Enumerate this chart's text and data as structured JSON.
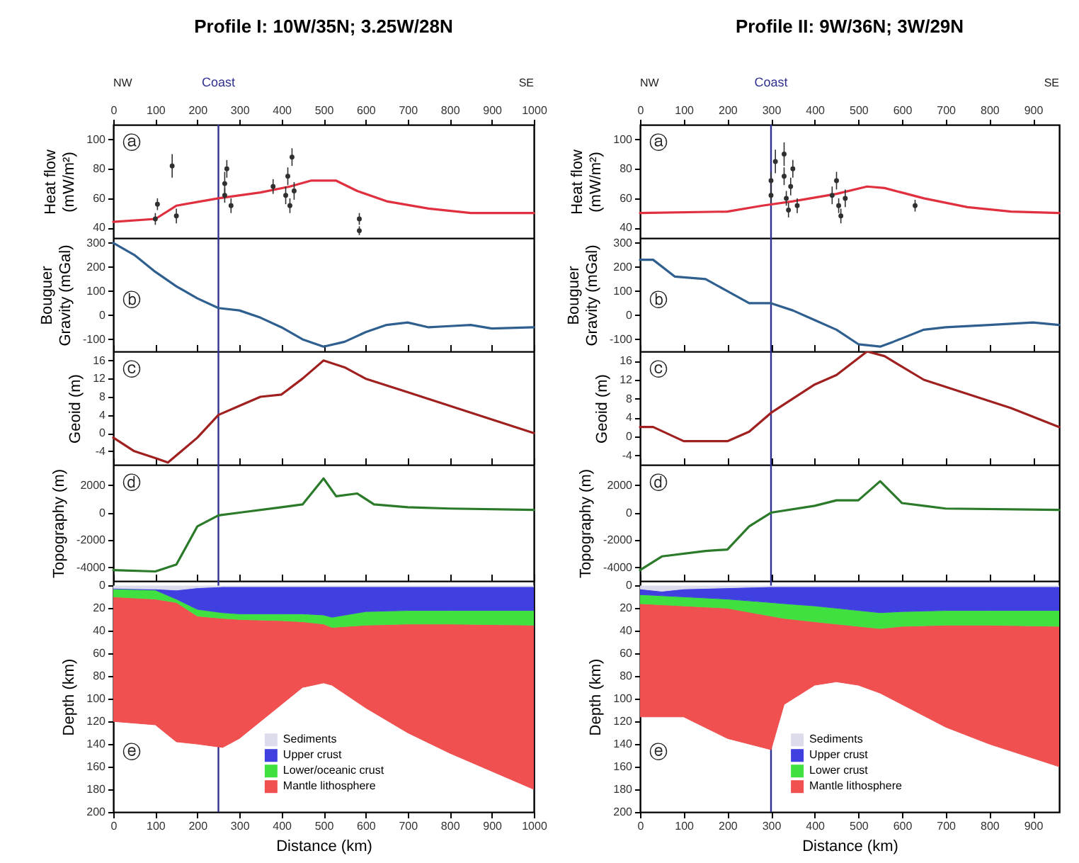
{
  "chart_data": [
    {
      "type": "line",
      "title": "Profile I: 10W/35N; 3.25W/28N",
      "ylabel": "Heat flow\n(mW/m²)",
      "xlim": [
        0,
        1000
      ],
      "xticks": [
        0,
        100,
        200,
        300,
        400,
        500,
        600,
        700,
        800,
        900,
        1000
      ],
      "ylim": [
        33,
        110
      ],
      "yticks": [
        40,
        60,
        80,
        100
      ],
      "annotations": [
        "ⓐ",
        "NW",
        "SE"
      ],
      "ref_lines": [
        {
          "axis": "x",
          "value": 250,
          "label": "Coast",
          "color": "#303090"
        }
      ],
      "series": [
        {
          "type": "scatter",
          "marker": "circle",
          "color": "#303030",
          "x": [
            100,
            105,
            140,
            150,
            265,
            265,
            270,
            280,
            380,
            410,
            415,
            420,
            425,
            430,
            585,
            585
          ],
          "values": [
            46,
            56,
            82,
            48,
            70,
            62,
            80,
            55,
            68,
            62,
            75,
            55,
            88,
            65,
            46,
            38
          ],
          "errors": [
            4,
            4,
            8,
            5,
            8,
            5,
            6,
            5,
            5,
            6,
            6,
            5,
            6,
            6,
            4,
            3
          ]
        },
        {
          "type": "line",
          "color": "#e03040",
          "x": [
            0,
            100,
            150,
            250,
            350,
            420,
            470,
            530,
            580,
            650,
            750,
            850,
            1000
          ],
          "values": [
            44,
            46,
            55,
            60,
            64,
            68,
            72,
            72,
            65,
            58,
            53,
            50,
            50
          ]
        }
      ]
    },
    {
      "type": "line",
      "ylabel": "Bouguer\nGravity (mGal)",
      "xlim": [
        0,
        1000
      ],
      "xticks": [
        0,
        100,
        200,
        300,
        400,
        500,
        600,
        700,
        800,
        900,
        1000
      ],
      "ylim": [
        -150,
        320
      ],
      "yticks": [
        -100,
        0,
        100,
        200,
        300
      ],
      "tick_labels": "y",
      "annotations": [
        "ⓑ"
      ],
      "ref_lines": [
        {
          "axis": "x",
          "value": 250,
          "color": "#303090"
        }
      ],
      "series": [
        {
          "color": "#2f5f8f",
          "x": [
            0,
            50,
            100,
            150,
            200,
            250,
            300,
            350,
            400,
            450,
            500,
            550,
            600,
            650,
            700,
            750,
            800,
            850,
            900,
            1000
          ],
          "values": [
            300,
            250,
            180,
            120,
            70,
            30,
            20,
            -10,
            -50,
            -100,
            -130,
            -110,
            -70,
            -40,
            -30,
            -50,
            -45,
            -40,
            -55,
            -50
          ]
        }
      ]
    },
    {
      "type": "line",
      "ylabel": "Geoid (m)",
      "xlim": [
        0,
        1000
      ],
      "xticks": [
        0,
        100,
        200,
        300,
        400,
        500,
        600,
        700,
        800,
        900,
        1000
      ],
      "ylim": [
        -7,
        18
      ],
      "yticks": [
        -4,
        0,
        4,
        8,
        12,
        16
      ],
      "tick_labels": "y",
      "annotations": [
        "ⓒ"
      ],
      "ref_lines": [
        {
          "axis": "x",
          "value": 250,
          "color": "#303090"
        }
      ],
      "series": [
        {
          "color": "#a02020",
          "x": [
            0,
            50,
            100,
            130,
            200,
            250,
            300,
            350,
            400,
            450,
            500,
            550,
            600,
            700,
            800,
            900,
            1000
          ],
          "values": [
            -1,
            -4,
            -5.5,
            -6.5,
            -1,
            4,
            6,
            8,
            8.5,
            12,
            16,
            14.5,
            12,
            9,
            6,
            3,
            0
          ]
        }
      ]
    },
    {
      "type": "line",
      "ylabel": "Topography (m)",
      "xlim": [
        0,
        1000
      ],
      "xticks": [
        0,
        100,
        200,
        300,
        400,
        500,
        600,
        700,
        800,
        900,
        1000
      ],
      "ylim": [
        -5000,
        3500
      ],
      "yticks": [
        -4000,
        -2000,
        0,
        2000
      ],
      "tick_labels": "y",
      "annotations": [
        "ⓓ"
      ],
      "ref_lines": [
        {
          "axis": "x",
          "value": 250,
          "color": "#303090"
        }
      ],
      "series": [
        {
          "color": "#2a7a2a",
          "x": [
            0,
            100,
            150,
            200,
            250,
            300,
            400,
            450,
            500,
            530,
            580,
            620,
            700,
            800,
            1000
          ],
          "values": [
            -4200,
            -4300,
            -3800,
            -1000,
            -200,
            0,
            400,
            600,
            2500,
            1200,
            1400,
            600,
            400,
            300,
            200
          ]
        }
      ]
    },
    {
      "type": "area",
      "stacked": true,
      "xlabel": "Distance (km)",
      "ylabel": "Depth (km)",
      "xlim": [
        0,
        1000
      ],
      "xticks": [
        0,
        100,
        200,
        300,
        400,
        500,
        600,
        700,
        800,
        900,
        1000
      ],
      "ylim": [
        200,
        -4
      ],
      "yticks": [
        0,
        20,
        40,
        60,
        80,
        100,
        120,
        140,
        160,
        180,
        200
      ],
      "legend": "bottom",
      "annotations": [
        "ⓔ"
      ],
      "ref_lines": [
        {
          "axis": "x",
          "value": 250,
          "color": "#303090"
        }
      ],
      "x": [
        0,
        100,
        150,
        200,
        260,
        300,
        400,
        450,
        500,
        520,
        600,
        700,
        800,
        1000
      ],
      "series": [
        {
          "name": "Sediments",
          "color": "#dcdcec",
          "values": [
            3,
            3,
            4,
            2,
            1,
            1,
            1,
            1,
            1,
            1,
            1,
            1,
            1,
            1
          ]
        },
        {
          "name": "Upper crust",
          "color": "#4040e0",
          "values": [
            0,
            1,
            8,
            19,
            23,
            24,
            24,
            24,
            25,
            27,
            22,
            21,
            21,
            21
          ]
        },
        {
          "name": "Lower/oceanic crust",
          "color": "#40e040",
          "values": [
            7,
            8,
            3,
            6,
            5,
            5,
            6,
            7,
            8,
            9,
            12,
            12,
            12,
            13
          ]
        },
        {
          "name": "Mantle lithosphere",
          "color": "#f05050",
          "values": [
            110,
            111,
            123,
            113,
            114,
            105,
            74,
            58,
            52,
            51,
            73,
            96,
            114,
            145
          ]
        }
      ]
    },
    {
      "type": "line",
      "title": "Profile II: 9W/36N; 3W/29N",
      "ylabel": "Heat flow\n(mW/m²)",
      "xlim": [
        0,
        960
      ],
      "xticks": [
        0,
        100,
        200,
        300,
        400,
        500,
        600,
        700,
        800,
        900
      ],
      "ylim": [
        33,
        110
      ],
      "yticks": [
        40,
        60,
        80,
        100
      ],
      "annotations": [
        "ⓐ",
        "NW",
        "SE"
      ],
      "ref_lines": [
        {
          "axis": "x",
          "value": 300,
          "label": "Coast",
          "color": "#303090"
        }
      ],
      "series": [
        {
          "type": "scatter",
          "marker": "circle",
          "color": "#303030",
          "x": [
            300,
            300,
            310,
            330,
            330,
            335,
            340,
            345,
            350,
            360,
            440,
            450,
            455,
            460,
            470,
            630
          ],
          "values": [
            72,
            62,
            85,
            90,
            75,
            60,
            52,
            68,
            80,
            55,
            62,
            72,
            55,
            48,
            60,
            55
          ],
          "errors": [
            6,
            5,
            8,
            8,
            6,
            5,
            5,
            6,
            6,
            5,
            6,
            6,
            5,
            5,
            6,
            4
          ]
        },
        {
          "type": "line",
          "color": "#e03040",
          "x": [
            0,
            200,
            280,
            350,
            450,
            520,
            560,
            650,
            750,
            850,
            960
          ],
          "values": [
            50,
            51,
            55,
            58,
            63,
            68,
            67,
            60,
            54,
            51,
            50
          ]
        }
      ]
    },
    {
      "type": "line",
      "ylabel": "Bouguer\nGravity (mGal)",
      "xlim": [
        0,
        960
      ],
      "xticks": [
        0,
        100,
        200,
        300,
        400,
        500,
        600,
        700,
        800,
        900
      ],
      "ylim": [
        -150,
        320
      ],
      "yticks": [
        -100,
        0,
        100,
        200,
        300
      ],
      "tick_labels": "y",
      "annotations": [
        "ⓑ"
      ],
      "ref_lines": [
        {
          "axis": "x",
          "value": 300,
          "color": "#303090"
        }
      ],
      "series": [
        {
          "color": "#2f5f8f",
          "x": [
            0,
            30,
            80,
            150,
            200,
            250,
            300,
            350,
            400,
            450,
            500,
            550,
            580,
            650,
            700,
            800,
            900,
            960
          ],
          "values": [
            230,
            230,
            160,
            150,
            100,
            50,
            50,
            20,
            -20,
            -60,
            -120,
            -130,
            -110,
            -60,
            -50,
            -40,
            -30,
            -40
          ]
        }
      ]
    },
    {
      "type": "line",
      "ylabel": "Geoid (m)",
      "xlim": [
        0,
        960
      ],
      "xticks": [
        0,
        100,
        200,
        300,
        400,
        500,
        600,
        700,
        800,
        900
      ],
      "ylim": [
        -6,
        18
      ],
      "yticks": [
        -4,
        0,
        4,
        8,
        12,
        16
      ],
      "tick_labels": "y",
      "annotations": [
        "ⓒ"
      ],
      "ref_lines": [
        {
          "axis": "x",
          "value": 300,
          "color": "#303090"
        }
      ],
      "series": [
        {
          "color": "#a02020",
          "x": [
            0,
            30,
            100,
            200,
            250,
            300,
            350,
            400,
            450,
            520,
            560,
            650,
            750,
            850,
            960
          ],
          "values": [
            2,
            2,
            -1,
            -1,
            1,
            5,
            8,
            11,
            13,
            18,
            17,
            12,
            9,
            6,
            2
          ]
        }
      ]
    },
    {
      "type": "line",
      "ylabel": "Topography (m)",
      "xlim": [
        0,
        960
      ],
      "xticks": [
        0,
        100,
        200,
        300,
        400,
        500,
        600,
        700,
        800,
        900
      ],
      "ylim": [
        -5000,
        3500
      ],
      "yticks": [
        -4000,
        -2000,
        0,
        2000
      ],
      "tick_labels": "y",
      "annotations": [
        "ⓓ"
      ],
      "ref_lines": [
        {
          "axis": "x",
          "value": 300,
          "color": "#303090"
        }
      ],
      "series": [
        {
          "color": "#2a7a2a",
          "x": [
            0,
            50,
            150,
            200,
            250,
            300,
            400,
            450,
            500,
            550,
            600,
            650,
            700,
            960
          ],
          "values": [
            -4200,
            -3200,
            -2800,
            -2700,
            -1000,
            0,
            500,
            900,
            900,
            2300,
            700,
            500,
            300,
            200
          ]
        }
      ]
    },
    {
      "type": "area",
      "stacked": true,
      "xlabel": "Distance (km)",
      "ylabel": "Depth (km)",
      "xlim": [
        0,
        960
      ],
      "xticks": [
        0,
        100,
        200,
        300,
        400,
        500,
        600,
        700,
        800,
        900
      ],
      "ylim": [
        200,
        -4
      ],
      "yticks": [
        0,
        20,
        40,
        60,
        80,
        100,
        120,
        140,
        160,
        180,
        200
      ],
      "legend": "bottom",
      "annotations": [
        "ⓔ"
      ],
      "ref_lines": [
        {
          "axis": "x",
          "value": 300,
          "color": "#303090"
        }
      ],
      "x": [
        0,
        50,
        100,
        200,
        300,
        330,
        400,
        450,
        500,
        550,
        600,
        700,
        800,
        960
      ],
      "series": [
        {
          "name": "Sediments",
          "color": "#dcdcec",
          "values": [
            3,
            5,
            3,
            2,
            1,
            1,
            1,
            1,
            1,
            1,
            1,
            1,
            1,
            1
          ]
        },
        {
          "name": "Upper crust",
          "color": "#4040e0",
          "values": [
            5,
            4,
            7,
            10,
            14,
            15,
            17,
            19,
            21,
            23,
            22,
            21,
            21,
            21
          ]
        },
        {
          "name": "Lower crust",
          "color": "#40e040",
          "values": [
            8,
            8,
            8,
            8,
            12,
            13,
            14,
            14,
            14,
            14,
            13,
            13,
            13,
            14
          ]
        },
        {
          "name": "Mantle lithosphere",
          "color": "#f05050",
          "values": [
            100,
            99,
            98,
            115,
            118,
            76,
            56,
            51,
            52,
            57,
            69,
            90,
            105,
            124
          ]
        }
      ]
    }
  ]
}
